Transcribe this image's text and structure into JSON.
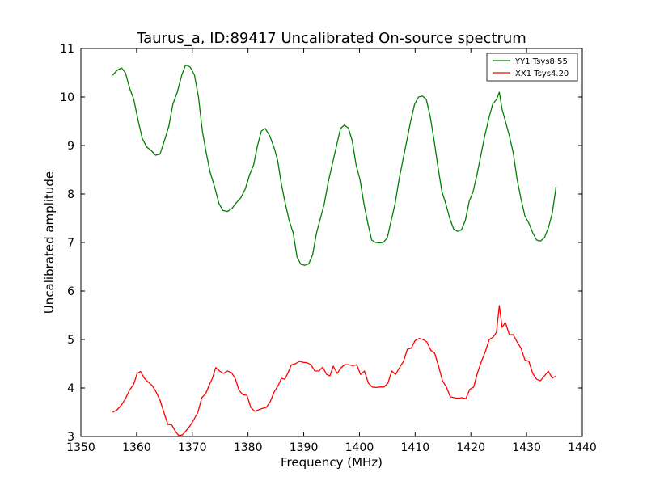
{
  "chart_data": {
    "type": "line",
    "title": "Taurus_a, ID:89417 Uncalibrated On-source spectrum",
    "xlabel": "Frequency (MHz)",
    "ylabel": "Uncalibrated amplitude",
    "xlim": [
      1350,
      1440
    ],
    "ylim": [
      3,
      11
    ],
    "xticks": [
      1350,
      1360,
      1370,
      1380,
      1390,
      1400,
      1410,
      1420,
      1430,
      1440
    ],
    "yticks": [
      3,
      4,
      5,
      6,
      7,
      8,
      9,
      10,
      11
    ],
    "grid": false,
    "legend_position": "top-right",
    "series": [
      {
        "name": "YY1 Tsys8.55",
        "color": "#008000",
        "points": [
          [
            1355.7,
            10.45
          ],
          [
            1356.5,
            10.55
          ],
          [
            1357.3,
            10.6
          ],
          [
            1358.0,
            10.5
          ],
          [
            1358.7,
            10.2
          ],
          [
            1359.5,
            9.95
          ],
          [
            1360.3,
            9.5
          ],
          [
            1361.0,
            9.15
          ],
          [
            1361.8,
            8.97
          ],
          [
            1362.6,
            8.9
          ],
          [
            1363.4,
            8.8
          ],
          [
            1364.2,
            8.82
          ],
          [
            1365.0,
            9.1
          ],
          [
            1365.8,
            9.4
          ],
          [
            1366.5,
            9.85
          ],
          [
            1367.3,
            10.1
          ],
          [
            1368.1,
            10.45
          ],
          [
            1368.8,
            10.66
          ],
          [
            1369.6,
            10.62
          ],
          [
            1370.4,
            10.45
          ],
          [
            1371.1,
            10.0
          ],
          [
            1371.8,
            9.3
          ],
          [
            1372.5,
            8.85
          ],
          [
            1373.2,
            8.45
          ],
          [
            1374.0,
            8.15
          ],
          [
            1374.8,
            7.8
          ],
          [
            1375.5,
            7.66
          ],
          [
            1376.3,
            7.64
          ],
          [
            1377.1,
            7.7
          ],
          [
            1377.9,
            7.82
          ],
          [
            1378.7,
            7.92
          ],
          [
            1379.5,
            8.1
          ],
          [
            1380.3,
            8.4
          ],
          [
            1381.0,
            8.6
          ],
          [
            1381.7,
            9.0
          ],
          [
            1382.4,
            9.3
          ],
          [
            1383.1,
            9.35
          ],
          [
            1383.9,
            9.2
          ],
          [
            1384.7,
            8.95
          ],
          [
            1385.3,
            8.7
          ],
          [
            1386.0,
            8.2
          ],
          [
            1386.7,
            7.8
          ],
          [
            1387.4,
            7.45
          ],
          [
            1388.1,
            7.2
          ],
          [
            1388.8,
            6.7
          ],
          [
            1389.5,
            6.55
          ],
          [
            1390.2,
            6.53
          ],
          [
            1390.9,
            6.56
          ],
          [
            1391.6,
            6.75
          ],
          [
            1392.3,
            7.2
          ],
          [
            1393.0,
            7.5
          ],
          [
            1393.7,
            7.8
          ],
          [
            1394.4,
            8.25
          ],
          [
            1395.1,
            8.6
          ],
          [
            1395.9,
            9.0
          ],
          [
            1396.6,
            9.35
          ],
          [
            1397.3,
            9.42
          ],
          [
            1398.0,
            9.36
          ],
          [
            1398.7,
            9.1
          ],
          [
            1399.4,
            8.6
          ],
          [
            1400.1,
            8.3
          ],
          [
            1400.8,
            7.8
          ],
          [
            1401.5,
            7.4
          ],
          [
            1402.2,
            7.05
          ],
          [
            1402.9,
            7.0
          ],
          [
            1403.6,
            6.99
          ],
          [
            1404.3,
            7.0
          ],
          [
            1405.0,
            7.1
          ],
          [
            1405.7,
            7.45
          ],
          [
            1406.4,
            7.8
          ],
          [
            1407.1,
            8.3
          ],
          [
            1407.8,
            8.7
          ],
          [
            1408.5,
            9.1
          ],
          [
            1409.2,
            9.5
          ],
          [
            1409.9,
            9.85
          ],
          [
            1410.6,
            10.0
          ],
          [
            1411.3,
            10.02
          ],
          [
            1412.0,
            9.95
          ],
          [
            1412.7,
            9.6
          ],
          [
            1413.4,
            9.1
          ],
          [
            1414.1,
            8.55
          ],
          [
            1414.8,
            8.05
          ],
          [
            1415.5,
            7.8
          ],
          [
            1416.2,
            7.5
          ],
          [
            1416.9,
            7.28
          ],
          [
            1417.6,
            7.23
          ],
          [
            1418.3,
            7.26
          ],
          [
            1419.0,
            7.45
          ],
          [
            1419.7,
            7.85
          ],
          [
            1420.4,
            8.05
          ],
          [
            1421.1,
            8.4
          ],
          [
            1421.8,
            8.8
          ],
          [
            1422.5,
            9.2
          ],
          [
            1423.2,
            9.55
          ],
          [
            1423.9,
            9.85
          ],
          [
            1424.6,
            9.95
          ],
          [
            1425.1,
            10.1
          ],
          [
            1425.6,
            9.75
          ],
          [
            1426.2,
            9.5
          ],
          [
            1426.9,
            9.2
          ],
          [
            1427.6,
            8.85
          ],
          [
            1428.3,
            8.3
          ],
          [
            1429.0,
            7.9
          ],
          [
            1429.7,
            7.55
          ],
          [
            1430.4,
            7.4
          ],
          [
            1431.1,
            7.2
          ],
          [
            1431.8,
            7.05
          ],
          [
            1432.5,
            7.03
          ],
          [
            1433.2,
            7.1
          ],
          [
            1433.9,
            7.3
          ],
          [
            1434.6,
            7.6
          ],
          [
            1435.3,
            8.15
          ]
        ]
      },
      {
        "name": "XX1 Tsys4.20",
        "color": "#ff0000",
        "points": [
          [
            1355.7,
            3.5
          ],
          [
            1356.5,
            3.55
          ],
          [
            1357.3,
            3.65
          ],
          [
            1358.0,
            3.78
          ],
          [
            1358.7,
            3.95
          ],
          [
            1359.5,
            4.08
          ],
          [
            1360.1,
            4.3
          ],
          [
            1360.7,
            4.34
          ],
          [
            1361.4,
            4.2
          ],
          [
            1362.1,
            4.12
          ],
          [
            1362.8,
            4.05
          ],
          [
            1363.5,
            3.92
          ],
          [
            1364.2,
            3.75
          ],
          [
            1364.9,
            3.5
          ],
          [
            1365.6,
            3.25
          ],
          [
            1366.3,
            3.24
          ],
          [
            1367.0,
            3.1
          ],
          [
            1367.6,
            3.02
          ],
          [
            1368.2,
            3.03
          ],
          [
            1368.9,
            3.12
          ],
          [
            1369.6,
            3.22
          ],
          [
            1370.3,
            3.35
          ],
          [
            1371.0,
            3.5
          ],
          [
            1371.7,
            3.8
          ],
          [
            1372.4,
            3.88
          ],
          [
            1373.0,
            4.05
          ],
          [
            1373.6,
            4.2
          ],
          [
            1374.2,
            4.42
          ],
          [
            1374.9,
            4.35
          ],
          [
            1375.6,
            4.3
          ],
          [
            1376.3,
            4.35
          ],
          [
            1377.0,
            4.32
          ],
          [
            1377.7,
            4.2
          ],
          [
            1378.4,
            3.95
          ],
          [
            1379.1,
            3.86
          ],
          [
            1379.8,
            3.85
          ],
          [
            1380.5,
            3.6
          ],
          [
            1381.2,
            3.52
          ],
          [
            1381.9,
            3.55
          ],
          [
            1382.6,
            3.58
          ],
          [
            1383.3,
            3.6
          ],
          [
            1384.0,
            3.72
          ],
          [
            1384.7,
            3.92
          ],
          [
            1385.4,
            4.05
          ],
          [
            1386.0,
            4.2
          ],
          [
            1386.6,
            4.18
          ],
          [
            1387.2,
            4.32
          ],
          [
            1387.8,
            4.48
          ],
          [
            1388.5,
            4.5
          ],
          [
            1389.2,
            4.55
          ],
          [
            1389.9,
            4.53
          ],
          [
            1390.6,
            4.52
          ],
          [
            1391.3,
            4.48
          ],
          [
            1392.0,
            4.35
          ],
          [
            1392.7,
            4.35
          ],
          [
            1393.4,
            4.43
          ],
          [
            1394.1,
            4.28
          ],
          [
            1394.7,
            4.25
          ],
          [
            1395.3,
            4.45
          ],
          [
            1396.0,
            4.3
          ],
          [
            1396.7,
            4.42
          ],
          [
            1397.4,
            4.48
          ],
          [
            1398.1,
            4.48
          ],
          [
            1398.8,
            4.46
          ],
          [
            1399.5,
            4.48
          ],
          [
            1400.2,
            4.28
          ],
          [
            1400.9,
            4.35
          ],
          [
            1401.6,
            4.1
          ],
          [
            1402.3,
            4.02
          ],
          [
            1403.0,
            4.01
          ],
          [
            1403.7,
            4.02
          ],
          [
            1404.4,
            4.02
          ],
          [
            1405.1,
            4.1
          ],
          [
            1405.8,
            4.35
          ],
          [
            1406.5,
            4.28
          ],
          [
            1407.2,
            4.42
          ],
          [
            1407.9,
            4.55
          ],
          [
            1408.6,
            4.8
          ],
          [
            1409.3,
            4.82
          ],
          [
            1410.0,
            4.98
          ],
          [
            1410.7,
            5.02
          ],
          [
            1411.4,
            5.0
          ],
          [
            1412.1,
            4.95
          ],
          [
            1412.8,
            4.78
          ],
          [
            1413.5,
            4.72
          ],
          [
            1414.2,
            4.45
          ],
          [
            1414.9,
            4.15
          ],
          [
            1415.6,
            4.02
          ],
          [
            1416.3,
            3.82
          ],
          [
            1417.0,
            3.8
          ],
          [
            1417.7,
            3.79
          ],
          [
            1418.4,
            3.8
          ],
          [
            1419.1,
            3.78
          ],
          [
            1419.8,
            3.97
          ],
          [
            1420.5,
            4.02
          ],
          [
            1421.2,
            4.32
          ],
          [
            1421.9,
            4.55
          ],
          [
            1422.6,
            4.75
          ],
          [
            1423.3,
            5.0
          ],
          [
            1424.0,
            5.05
          ],
          [
            1424.6,
            5.15
          ],
          [
            1425.1,
            5.7
          ],
          [
            1425.6,
            5.25
          ],
          [
            1426.2,
            5.35
          ],
          [
            1426.9,
            5.1
          ],
          [
            1427.6,
            5.1
          ],
          [
            1428.3,
            4.95
          ],
          [
            1429.0,
            4.82
          ],
          [
            1429.7,
            4.58
          ],
          [
            1430.4,
            4.55
          ],
          [
            1431.1,
            4.3
          ],
          [
            1431.8,
            4.18
          ],
          [
            1432.5,
            4.15
          ],
          [
            1433.2,
            4.25
          ],
          [
            1433.9,
            4.35
          ],
          [
            1434.6,
            4.2
          ],
          [
            1435.3,
            4.25
          ]
        ]
      }
    ]
  }
}
